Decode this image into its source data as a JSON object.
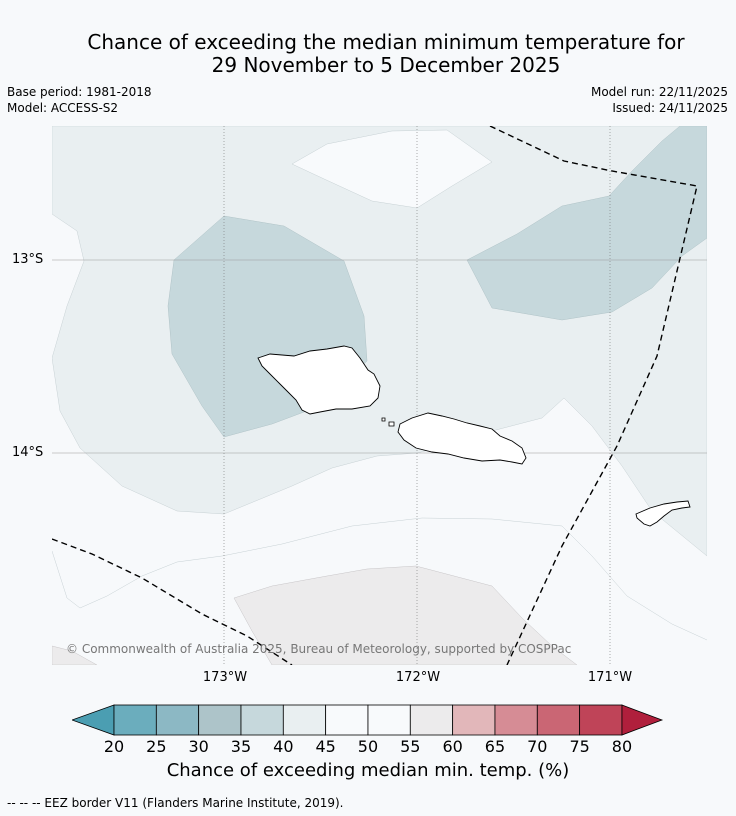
{
  "title_line1": "Chance of exceeding the median minimum temperature for",
  "title_line2": "29 November to 5 December 2025",
  "base_period": "Base period: 1981-2018",
  "model": "Model: ACCESS-S2",
  "model_run": "Model run: 22/11/2025",
  "issued": "Issued: 24/11/2025",
  "lat_labels": [
    "13°S",
    "14°S"
  ],
  "lon_labels": [
    "173°W",
    "172°W",
    "171°W"
  ],
  "copyright": "© Commonwealth of Australia 2025, Bureau of Meteorology, supported by COSPPac",
  "colorbar": {
    "ticks": [
      "20",
      "25",
      "30",
      "35",
      "40",
      "45",
      "50",
      "55",
      "60",
      "65",
      "70",
      "75",
      "80"
    ],
    "colors": [
      "#6badbd",
      "#8cb8c4",
      "#adc4c9",
      "#c6d8dc",
      "#e9eff1",
      "#f8fafc",
      "#f8fafc",
      "#ecebec",
      "#e2b7ba",
      "#d68c95",
      "#ca6674",
      "#bf4458"
    ],
    "low_extend_color": "#4b9eb2",
    "high_extend_color": "#b01f3c",
    "title": "Chance of exceeding median min. temp. (%)"
  },
  "footnote": "--  --  -- EEZ border V11 (Flanders Marine Institute, 2019)."
}
